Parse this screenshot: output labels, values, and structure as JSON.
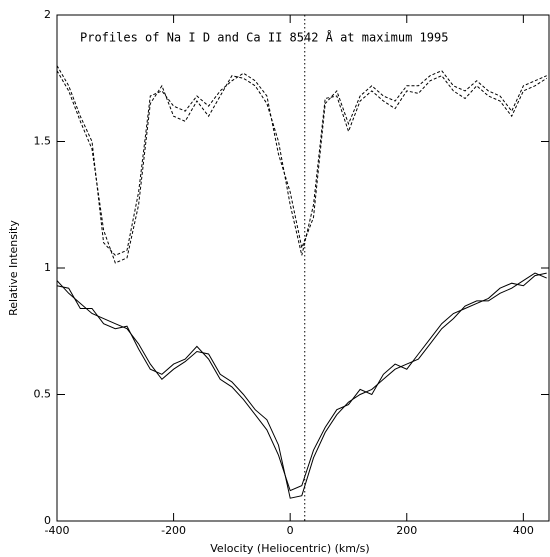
{
  "chart_data": {
    "type": "line",
    "title": "Profiles of Na I D and Ca II 8542 Å at maximum 1995",
    "x_label": "Velocity (Heliocentric) (km/s)",
    "y_label": "Relative Intensity",
    "x": [
      -400,
      -380,
      -360,
      -340,
      -320,
      -300,
      -280,
      -260,
      -240,
      -220,
      -200,
      -180,
      -160,
      -140,
      -120,
      -100,
      -80,
      -60,
      -40,
      -20,
      0,
      20,
      40,
      60,
      80,
      100,
      120,
      140,
      160,
      180,
      200,
      220,
      240,
      260,
      280,
      300,
      320,
      340,
      360,
      380,
      400,
      420,
      440
    ],
    "series": [
      {
        "color": "#000000",
        "dash": true,
        "values": [
          1.8,
          1.72,
          1.6,
          1.5,
          1.1,
          1.05,
          1.07,
          1.3,
          1.68,
          1.7,
          1.64,
          1.62,
          1.68,
          1.64,
          1.7,
          1.74,
          1.77,
          1.74,
          1.68,
          1.45,
          1.3,
          1.08,
          1.2,
          1.65,
          1.7,
          1.57,
          1.68,
          1.72,
          1.68,
          1.66,
          1.72,
          1.72,
          1.76,
          1.78,
          1.72,
          1.7,
          1.74,
          1.7,
          1.68,
          1.62,
          1.72,
          1.74,
          1.76
        ]
      },
      {
        "color": "#000000",
        "dash": true,
        "values": [
          1.78,
          1.7,
          1.58,
          1.47,
          1.15,
          1.02,
          1.04,
          1.25,
          1.65,
          1.72,
          1.6,
          1.58,
          1.66,
          1.6,
          1.68,
          1.76,
          1.75,
          1.72,
          1.65,
          1.5,
          1.25,
          1.05,
          1.25,
          1.67,
          1.68,
          1.54,
          1.66,
          1.7,
          1.66,
          1.63,
          1.7,
          1.69,
          1.74,
          1.76,
          1.7,
          1.67,
          1.72,
          1.68,
          1.66,
          1.6,
          1.7,
          1.72,
          1.75
        ]
      },
      {
        "color": "#000000",
        "dash": false,
        "values": [
          0.95,
          0.9,
          0.86,
          0.82,
          0.8,
          0.78,
          0.76,
          0.7,
          0.62,
          0.56,
          0.6,
          0.63,
          0.67,
          0.66,
          0.58,
          0.55,
          0.5,
          0.44,
          0.4,
          0.3,
          0.09,
          0.1,
          0.25,
          0.35,
          0.42,
          0.47,
          0.5,
          0.52,
          0.56,
          0.6,
          0.62,
          0.64,
          0.7,
          0.76,
          0.8,
          0.85,
          0.87,
          0.87,
          0.9,
          0.92,
          0.95,
          0.98,
          0.96
        ]
      },
      {
        "color": "#000000",
        "dash": false,
        "values": [
          0.93,
          0.92,
          0.84,
          0.84,
          0.78,
          0.76,
          0.77,
          0.68,
          0.6,
          0.58,
          0.62,
          0.64,
          0.69,
          0.64,
          0.56,
          0.53,
          0.48,
          0.42,
          0.36,
          0.26,
          0.12,
          0.14,
          0.28,
          0.37,
          0.44,
          0.46,
          0.52,
          0.5,
          0.58,
          0.62,
          0.6,
          0.66,
          0.72,
          0.78,
          0.82,
          0.84,
          0.86,
          0.88,
          0.92,
          0.94,
          0.93,
          0.97,
          0.98
        ]
      }
    ],
    "vline": 25,
    "xlim": [
      -400,
      444
    ],
    "ylim": [
      0,
      2
    ],
    "xticks": [
      -400,
      -200,
      0,
      200,
      400
    ],
    "yticks": [
      0,
      0.5,
      1,
      1.5,
      2
    ]
  }
}
